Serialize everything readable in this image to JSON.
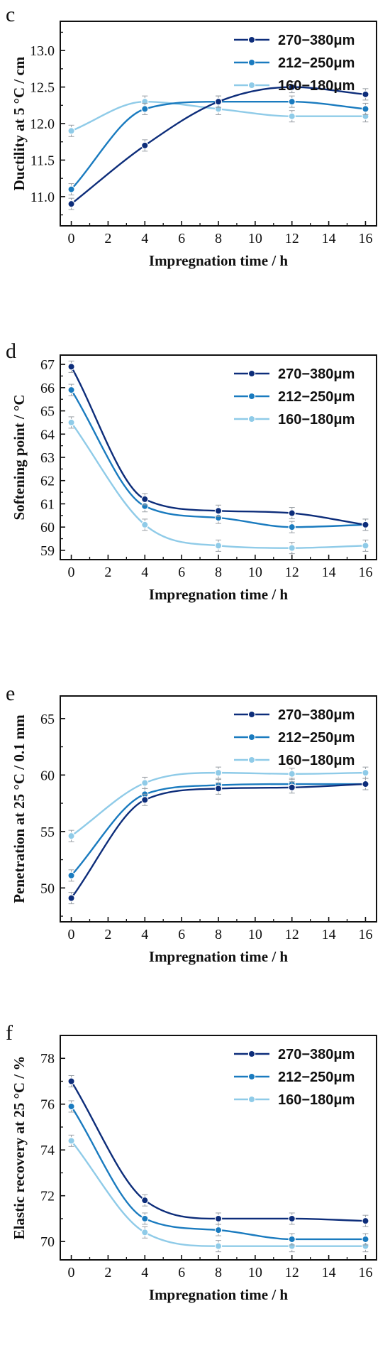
{
  "colors": {
    "s1": "#0d2d7a",
    "s2": "#1a7bbf",
    "s3": "#8fcbe8",
    "axis": "#111111"
  },
  "chart_data": [
    {
      "panel": "c",
      "type": "line",
      "xlabel": "Impregnation time / h",
      "ylabel": "Ductility at 5 °C / cm",
      "x": [
        0,
        4,
        8,
        12,
        16
      ],
      "xlim": [
        -0.6,
        16.6
      ],
      "ylim": [
        10.6,
        13.4
      ],
      "xticks": [
        0,
        2,
        4,
        6,
        8,
        10,
        12,
        14,
        16
      ],
      "yticks": [
        11.0,
        11.5,
        12.0,
        12.5,
        13.0
      ],
      "ytick_labels": [
        "11.0",
        "11.5",
        "12.0",
        "12.5",
        "13.0"
      ],
      "legend_position": "top-right",
      "series": [
        {
          "name": "270−380μm",
          "values": [
            10.9,
            11.7,
            12.3,
            12.5,
            12.4
          ]
        },
        {
          "name": "212−250μm",
          "values": [
            11.1,
            12.2,
            12.3,
            12.3,
            12.2
          ]
        },
        {
          "name": "160−180μm",
          "values": [
            11.9,
            12.3,
            12.2,
            12.1,
            12.1
          ]
        }
      ]
    },
    {
      "panel": "d",
      "type": "line",
      "xlabel": "Impregnation time / h",
      "ylabel": "Softening point / °C",
      "x": [
        0,
        4,
        8,
        12,
        16
      ],
      "xlim": [
        -0.6,
        16.6
      ],
      "ylim": [
        58.6,
        67.4
      ],
      "xticks": [
        0,
        2,
        4,
        6,
        8,
        10,
        12,
        14,
        16
      ],
      "yticks": [
        59,
        60,
        61,
        62,
        63,
        64,
        65,
        66,
        67
      ],
      "ytick_labels": [
        "59",
        "60",
        "61",
        "62",
        "63",
        "64",
        "65",
        "66",
        "67"
      ],
      "legend_position": "top-right",
      "series": [
        {
          "name": "270−380μm",
          "values": [
            66.9,
            61.2,
            60.7,
            60.6,
            60.1
          ]
        },
        {
          "name": "212−250μm",
          "values": [
            65.9,
            60.9,
            60.4,
            60.0,
            60.1
          ]
        },
        {
          "name": "160−180μm",
          "values": [
            64.5,
            60.1,
            59.2,
            59.1,
            59.2
          ]
        }
      ]
    },
    {
      "panel": "e",
      "type": "line",
      "xlabel": "Impregnation time / h",
      "ylabel": "Penetration at 25 °C / 0.1 mm",
      "x": [
        0,
        4,
        8,
        12,
        16
      ],
      "xlim": [
        -0.6,
        16.6
      ],
      "ylim": [
        47,
        67
      ],
      "xticks": [
        0,
        2,
        4,
        6,
        8,
        10,
        12,
        14,
        16
      ],
      "yticks": [
        50,
        55,
        60,
        65
      ],
      "ytick_labels": [
        "50",
        "55",
        "60",
        "65"
      ],
      "legend_position": "top-right",
      "series": [
        {
          "name": "270−380μm",
          "values": [
            49.1,
            57.8,
            58.8,
            58.9,
            59.2
          ]
        },
        {
          "name": "212−250μm",
          "values": [
            51.1,
            58.3,
            59.1,
            59.2,
            59.2
          ]
        },
        {
          "name": "160−180μm",
          "values": [
            54.6,
            59.3,
            60.2,
            60.1,
            60.2
          ]
        }
      ]
    },
    {
      "panel": "f",
      "type": "line",
      "xlabel": "Impregnation time / h",
      "ylabel": "Elastic recovery at 25 °C / %",
      "x": [
        0,
        4,
        8,
        12,
        16
      ],
      "xlim": [
        -0.6,
        16.6
      ],
      "ylim": [
        69.2,
        79.0
      ],
      "xticks": [
        0,
        2,
        4,
        6,
        8,
        10,
        12,
        14,
        16
      ],
      "yticks": [
        70,
        72,
        74,
        76,
        78
      ],
      "ytick_labels": [
        "70",
        "72",
        "74",
        "76",
        "78"
      ],
      "legend_position": "top-right",
      "series": [
        {
          "name": "270−380μm",
          "values": [
            77.0,
            71.8,
            71.0,
            71.0,
            70.9
          ]
        },
        {
          "name": "212−250μm",
          "values": [
            75.9,
            71.0,
            70.5,
            70.1,
            70.1
          ]
        },
        {
          "name": "160−180μm",
          "values": [
            74.4,
            70.4,
            69.8,
            69.8,
            69.8
          ]
        }
      ]
    }
  ]
}
